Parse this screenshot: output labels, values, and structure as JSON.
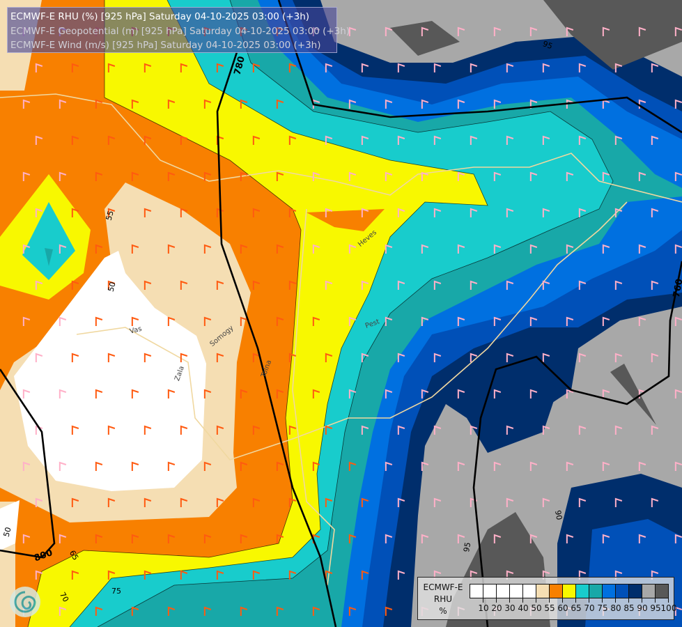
{
  "header": {
    "line1": "ECMWF-E RHU (%) [925 hPa] Saturday 04-10-2025 03:00 (+3h)",
    "line2": "ECMWF-E Geopotential (m) [925 hPa] Saturday 04-10-2025 03:00 (+3h)",
    "line3": "ECMWF-E Wind (m/s) [925 hPa] Saturday 04-10-2025 03:00 (+3h)"
  },
  "legend": {
    "title_lines": [
      "ECMWF-E",
      "RHU",
      "%"
    ],
    "colors": [
      "#ffffff",
      "#ffffff",
      "#ffffff",
      "#ffffff",
      "#ffffff",
      "#f5deb3",
      "#f88000",
      "#f8f800",
      "#18cccc",
      "#18a8a8",
      "#0070e0",
      "#0050b8",
      "#002e6c",
      "#a8a8a8",
      "#585858"
    ],
    "tick_labels": [
      "10",
      "20",
      "30",
      "40",
      "50",
      "55",
      "60",
      "65",
      "70",
      "75",
      "80",
      "85",
      "90",
      "95",
      "100"
    ]
  },
  "contour_labels": {
    "geopotential": [
      "780",
      "760",
      "800"
    ],
    "rhu": [
      "55",
      "50",
      "50",
      "65",
      "70",
      "75",
      "90",
      "95",
      "95"
    ]
  },
  "places": [
    "Vas",
    "Zala",
    "Somogy",
    "Tolna",
    "Heves",
    "Pest"
  ],
  "colors": {
    "barb_dry": "#ff5a10",
    "barb_wet": "#ffb0c8",
    "contour": "#000000"
  }
}
